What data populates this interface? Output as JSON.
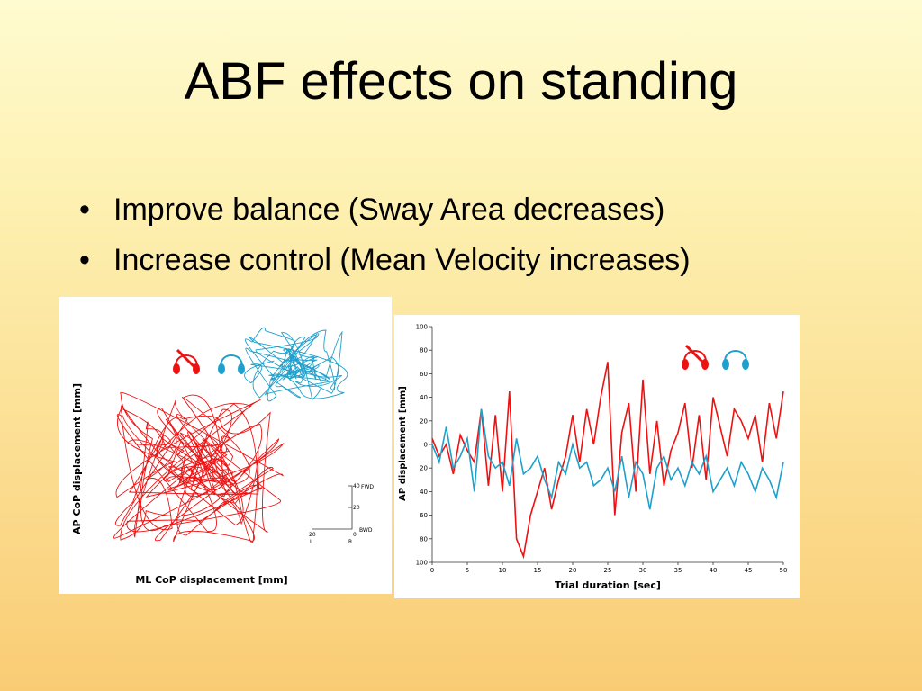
{
  "slide": {
    "title": "ABF effects on standing",
    "bullets": [
      "Improve balance (Sway Area decreases)",
      "Increase control (Mean Velocity increases)"
    ]
  },
  "colors": {
    "no_feedback": "#ee1111",
    "feedback": "#1fa0cc"
  },
  "icons": {
    "no_feedback": "headphones-crossed-icon",
    "feedback": "headphones-icon"
  },
  "chart_data": [
    {
      "type": "scatter",
      "ylabel": "AP CoP displacement [mm]",
      "xlabel": "ML CoP displacement [mm]",
      "scale_bar": {
        "ticks": [
          "40",
          "20",
          "0",
          "20"
        ],
        "fwd": "FWD",
        "bwd": "BWD",
        "left": "L",
        "right": "R"
      },
      "series": [
        {
          "color": "#ee1111",
          "extent": "wide"
        },
        {
          "color": "#1fa0cc",
          "extent": "narrow"
        }
      ]
    },
    {
      "type": "line",
      "xlabel": "Trial duration [sec]",
      "ylabel": "AP displacement [mm]",
      "xlim": [
        0,
        50
      ],
      "ylim": [
        -100,
        100
      ],
      "xticks": [
        "0",
        "5",
        "10",
        "15",
        "20",
        "25",
        "30",
        "35",
        "40",
        "45",
        "50"
      ],
      "yticks": [
        "100",
        "80",
        "60",
        "40",
        "20",
        "0",
        "20",
        "40",
        "60",
        "80",
        "100"
      ],
      "series": [
        {
          "color": "#ee1111",
          "x": [
            0,
            1,
            2,
            3,
            4,
            5,
            6,
            7,
            8,
            9,
            10,
            11,
            12,
            13,
            14,
            15,
            16,
            17,
            18,
            19,
            20,
            21,
            22,
            23,
            24,
            25,
            26,
            27,
            28,
            29,
            30,
            31,
            32,
            33,
            34,
            35,
            36,
            37,
            38,
            39,
            40,
            41,
            42,
            43,
            44,
            45,
            46,
            47,
            48,
            49,
            50
          ],
          "values": [
            5,
            -10,
            0,
            -25,
            8,
            -5,
            -15,
            30,
            -35,
            25,
            -40,
            45,
            -80,
            -95,
            -60,
            -40,
            -20,
            -55,
            -30,
            -10,
            25,
            -15,
            30,
            0,
            40,
            70,
            -60,
            10,
            35,
            -40,
            55,
            -25,
            20,
            -35,
            -5,
            10,
            35,
            -20,
            25,
            -30,
            40,
            15,
            -10,
            30,
            20,
            5,
            25,
            -15,
            35,
            5,
            45
          ]
        },
        {
          "color": "#1fa0cc",
          "x": [
            0,
            1,
            2,
            3,
            4,
            5,
            6,
            7,
            8,
            9,
            10,
            11,
            12,
            13,
            14,
            15,
            16,
            17,
            18,
            19,
            20,
            21,
            22,
            23,
            24,
            25,
            26,
            27,
            28,
            29,
            30,
            31,
            32,
            33,
            34,
            35,
            36,
            37,
            38,
            39,
            40,
            41,
            42,
            43,
            44,
            45,
            46,
            47,
            48,
            49,
            50
          ],
          "values": [
            0,
            -15,
            15,
            -20,
            -10,
            5,
            -40,
            30,
            -10,
            -20,
            -15,
            -35,
            5,
            -25,
            -20,
            -10,
            -30,
            -45,
            -15,
            -25,
            0,
            -20,
            -15,
            -35,
            -30,
            -20,
            -40,
            -10,
            -45,
            -15,
            -25,
            -55,
            -20,
            -10,
            -30,
            -20,
            -35,
            -15,
            -25,
            -10,
            -40,
            -30,
            -20,
            -35,
            -15,
            -25,
            -40,
            -20,
            -30,
            -45,
            -15
          ]
        }
      ]
    }
  ]
}
